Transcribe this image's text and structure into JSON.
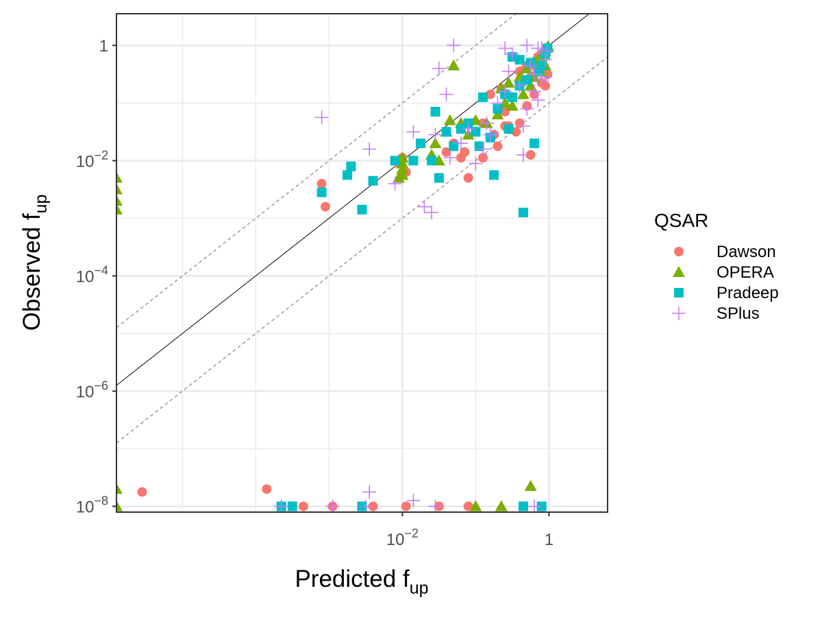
{
  "chart_data": {
    "type": "scatter",
    "scale": "log10",
    "xlabel": {
      "base": "Predicted f",
      "sub": "up"
    },
    "ylabel": {
      "base": "Observed f",
      "sub": "up"
    },
    "xlim_log10": [
      -5.9,
      0.8
    ],
    "ylim_log10": [
      -8.1,
      0.55
    ],
    "x_ticks": [
      {
        "exp": -2,
        "base": "10",
        "sup": "−2"
      },
      {
        "exp": 0,
        "base": "1",
        "sup": ""
      }
    ],
    "y_ticks": [
      {
        "exp": -8,
        "base": "10",
        "sup": "−8"
      },
      {
        "exp": -6,
        "base": "10",
        "sup": "−6"
      },
      {
        "exp": -4,
        "base": "10",
        "sup": "−4"
      },
      {
        "exp": -2,
        "base": "10",
        "sup": "−2"
      },
      {
        "exp": 0,
        "base": "1",
        "sup": ""
      }
    ],
    "grid": true,
    "reference_lines": [
      {
        "style": "solid",
        "color": "#000000",
        "offset_log10": 0
      },
      {
        "style": "dashed",
        "color": "#999999",
        "offset_log10": 1
      },
      {
        "style": "dashed",
        "color": "#999999",
        "offset_log10": -1
      }
    ],
    "legend": {
      "title": "QSAR",
      "position": "right"
    },
    "series": [
      {
        "name": "Dawson",
        "shape": "circle",
        "color": "#F8766D",
        "points": [
          [
            -3.1,
            -2.4
          ],
          [
            -3.05,
            -2.8
          ],
          [
            -2.05,
            -2.05
          ],
          [
            -2.0,
            -1.95
          ],
          [
            -1.95,
            -2.2
          ],
          [
            -1.4,
            -1.85
          ],
          [
            -1.3,
            -1.7
          ],
          [
            -1.2,
            -1.95
          ],
          [
            -1.15,
            -1.85
          ],
          [
            -1.1,
            -2.3
          ],
          [
            -1.0,
            -1.5
          ],
          [
            -0.9,
            -1.35
          ],
          [
            -0.75,
            -1.55
          ],
          [
            -0.7,
            -1.75
          ],
          [
            -0.6,
            -1.15
          ],
          [
            -0.55,
            -1.4
          ],
          [
            -0.45,
            -1.5
          ],
          [
            -0.4,
            -1.35
          ],
          [
            -0.3,
            -1.05
          ],
          [
            -0.25,
            -1.9
          ],
          [
            -0.2,
            -0.85
          ],
          [
            -0.1,
            -0.65
          ],
          [
            -0.05,
            -0.7
          ],
          [
            -0.02,
            -0.5
          ],
          [
            -0.8,
            -0.85
          ],
          [
            -0.4,
            -0.45
          ],
          [
            -0.65,
            -0.75
          ],
          [
            -0.6,
            -1.4
          ],
          [
            -0.9,
            -1.95
          ],
          [
            -0.3,
            -0.35
          ],
          [
            -0.25,
            -0.55
          ],
          [
            -0.2,
            -0.35
          ],
          [
            -0.15,
            -0.2
          ],
          [
            -0.1,
            -0.15
          ],
          [
            -0.05,
            -0.08
          ],
          [
            -0.02,
            -0.05
          ],
          [
            -5.55,
            -7.75
          ],
          [
            -3.85,
            -7.7
          ],
          [
            -3.35,
            -8.0
          ],
          [
            -3.65,
            -8.0
          ],
          [
            -2.95,
            -8.0
          ],
          [
            -2.4,
            -8.0
          ],
          [
            -1.95,
            -8.0
          ],
          [
            -1.5,
            -8.0
          ],
          [
            -1.1,
            -8.0
          ]
        ]
      },
      {
        "name": "OPERA",
        "shape": "triangle",
        "color": "#7CAE00",
        "points": [
          [
            -5.9,
            -2.3
          ],
          [
            -5.9,
            -2.5
          ],
          [
            -5.9,
            -2.7
          ],
          [
            -5.9,
            -2.85
          ],
          [
            -2.0,
            -1.95
          ],
          [
            -2.0,
            -2.05
          ],
          [
            -2.0,
            -2.15
          ],
          [
            -2.0,
            -2.25
          ],
          [
            -2.05,
            -2.3
          ],
          [
            -1.6,
            -1.9
          ],
          [
            -1.55,
            -1.7
          ],
          [
            -1.5,
            -2.0
          ],
          [
            -1.4,
            -1.5
          ],
          [
            -1.35,
            -1.3
          ],
          [
            -1.2,
            -1.35
          ],
          [
            -1.1,
            -1.55
          ],
          [
            -1.0,
            -1.3
          ],
          [
            -0.85,
            -1.35
          ],
          [
            -0.7,
            -1.2
          ],
          [
            -0.6,
            -1.0
          ],
          [
            -0.5,
            -1.05
          ],
          [
            -0.35,
            -0.85
          ],
          [
            -0.25,
            -0.7
          ],
          [
            -0.2,
            -0.55
          ],
          [
            -0.1,
            -0.45
          ],
          [
            -0.05,
            -0.35
          ],
          [
            -0.05,
            -0.1
          ],
          [
            -0.03,
            -0.05
          ],
          [
            -0.02,
            -0.03
          ],
          [
            -0.01,
            -0.02
          ],
          [
            -0.3,
            -0.4
          ],
          [
            -0.2,
            -0.3
          ],
          [
            -0.1,
            -0.2
          ],
          [
            -0.15,
            -0.25
          ],
          [
            -0.4,
            -0.55
          ],
          [
            -0.65,
            -0.75
          ],
          [
            -0.55,
            -0.65
          ],
          [
            -1.3,
            -0.35
          ],
          [
            -5.9,
            -7.7
          ],
          [
            -5.9,
            -8.0
          ],
          [
            -0.25,
            -7.65
          ],
          [
            -1.0,
            -8.0
          ],
          [
            -0.65,
            -8.0
          ]
        ]
      },
      {
        "name": "Pradeep",
        "shape": "square",
        "color": "#00BFC4",
        "points": [
          [
            -3.1,
            -2.55
          ],
          [
            -2.75,
            -2.25
          ],
          [
            -2.7,
            -2.1
          ],
          [
            -2.55,
            -2.85
          ],
          [
            -2.4,
            -2.35
          ],
          [
            -2.1,
            -2.0
          ],
          [
            -1.85,
            -2.0
          ],
          [
            -1.75,
            -1.7
          ],
          [
            -1.6,
            -2.0
          ],
          [
            -1.55,
            -1.15
          ],
          [
            -1.5,
            -2.3
          ],
          [
            -1.4,
            -1.5
          ],
          [
            -1.3,
            -1.75
          ],
          [
            -1.2,
            -1.45
          ],
          [
            -1.1,
            -1.35
          ],
          [
            -1.0,
            -1.5
          ],
          [
            -0.95,
            -1.75
          ],
          [
            -0.9,
            -0.9
          ],
          [
            -0.8,
            -1.6
          ],
          [
            -0.75,
            -2.25
          ],
          [
            -0.7,
            -1.1
          ],
          [
            -0.55,
            -1.45
          ],
          [
            -0.5,
            -0.9
          ],
          [
            -0.4,
            -0.7
          ],
          [
            -0.35,
            -2.9
          ],
          [
            -0.3,
            -0.6
          ],
          [
            -0.2,
            -1.7
          ],
          [
            -0.15,
            -0.45
          ],
          [
            -0.1,
            -0.35
          ],
          [
            -0.05,
            -0.15
          ],
          [
            -0.02,
            -0.05
          ],
          [
            -0.25,
            -0.3
          ],
          [
            -0.4,
            -0.25
          ],
          [
            -0.5,
            -0.2
          ],
          [
            -0.6,
            -0.85
          ],
          [
            -3.65,
            -8.0
          ],
          [
            -3.5,
            -8.0
          ],
          [
            -2.55,
            -8.0
          ],
          [
            -0.35,
            -8.0
          ],
          [
            -0.1,
            -8.0
          ]
        ]
      },
      {
        "name": "SPlus",
        "shape": "plus",
        "color": "#C77CFF",
        "points": [
          [
            -3.1,
            -1.25
          ],
          [
            -2.45,
            -1.8
          ],
          [
            -2.1,
            -2.4
          ],
          [
            -1.85,
            -1.5
          ],
          [
            -1.7,
            -2.8
          ],
          [
            -1.6,
            -2.9
          ],
          [
            -1.55,
            -1.55
          ],
          [
            -1.5,
            -0.4
          ],
          [
            -1.4,
            -0.85
          ],
          [
            -1.35,
            -1.95
          ],
          [
            -1.3,
            0.0
          ],
          [
            -1.2,
            -1.7
          ],
          [
            -1.1,
            -1.45
          ],
          [
            -1.0,
            -2.05
          ],
          [
            -0.9,
            -1.8
          ],
          [
            -0.85,
            -1.35
          ],
          [
            -0.8,
            -1.55
          ],
          [
            -0.7,
            -1.0
          ],
          [
            -0.6,
            -0.8
          ],
          [
            -0.55,
            -0.45
          ],
          [
            -0.5,
            -0.15
          ],
          [
            -0.4,
            -0.7
          ],
          [
            -0.35,
            -1.4
          ],
          [
            -0.3,
            -1.1
          ],
          [
            -0.2,
            -0.5
          ],
          [
            -0.15,
            -0.95
          ],
          [
            -0.1,
            -0.6
          ],
          [
            -0.05,
            -0.25
          ],
          [
            -0.02,
            -0.1
          ],
          [
            -0.35,
            -1.9
          ],
          [
            -0.25,
            -0.35
          ],
          [
            -0.2,
            -0.8
          ],
          [
            -0.1,
            -0.05
          ],
          [
            -0.05,
            -0.55
          ],
          [
            -0.15,
            -0.05
          ],
          [
            -0.3,
            0.0
          ],
          [
            -0.6,
            -0.05
          ],
          [
            -2.45,
            -7.75
          ],
          [
            -1.85,
            -7.9
          ],
          [
            -3.65,
            -8.0
          ],
          [
            -2.95,
            -8.0
          ],
          [
            -2.5,
            -8.0
          ],
          [
            -1.55,
            -8.0
          ],
          [
            -0.2,
            -8.0
          ]
        ]
      }
    ]
  }
}
